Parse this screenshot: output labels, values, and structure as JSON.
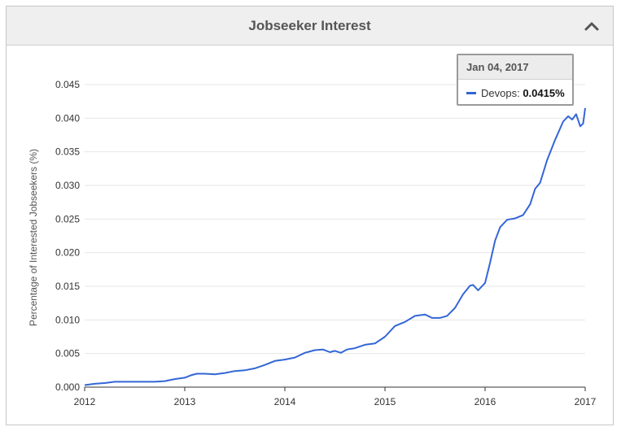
{
  "header": {
    "title": "Jobseeker Interest"
  },
  "colors": {
    "series": "#3366d6",
    "grid": "#e6e6e6",
    "axis": "#333333"
  },
  "tooltip": {
    "date": "Jan 04, 2017",
    "series_name": "Devops",
    "separator": ":",
    "value": "0.0415%"
  },
  "chart_data": {
    "type": "line",
    "title": "",
    "xlabel": "",
    "ylabel": "Percentage of Interested Jobseekers (%)",
    "xlim": [
      2012,
      2017
    ],
    "ylim": [
      0,
      0.045
    ],
    "grid": true,
    "x_ticks": [
      "2012",
      "2013",
      "2014",
      "2015",
      "2016",
      "2017"
    ],
    "y_ticks": [
      "0.000",
      "0.005",
      "0.010",
      "0.015",
      "0.020",
      "0.025",
      "0.030",
      "0.035",
      "0.040",
      "0.045"
    ],
    "series": [
      {
        "name": "Devops",
        "points": [
          [
            2012.0,
            0.0003
          ],
          [
            2012.1,
            0.0005
          ],
          [
            2012.2,
            0.0006
          ],
          [
            2012.3,
            0.0008
          ],
          [
            2012.4,
            0.0008
          ],
          [
            2012.5,
            0.0008
          ],
          [
            2012.6,
            0.0008
          ],
          [
            2012.7,
            0.0008
          ],
          [
            2012.8,
            0.0009
          ],
          [
            2012.9,
            0.0012
          ],
          [
            2013.0,
            0.0014
          ],
          [
            2013.07,
            0.0018
          ],
          [
            2013.12,
            0.002
          ],
          [
            2013.2,
            0.002
          ],
          [
            2013.3,
            0.0019
          ],
          [
            2013.4,
            0.0021
          ],
          [
            2013.5,
            0.0024
          ],
          [
            2013.6,
            0.0025
          ],
          [
            2013.7,
            0.0028
          ],
          [
            2013.8,
            0.0033
          ],
          [
            2013.9,
            0.0039
          ],
          [
            2014.0,
            0.0041
          ],
          [
            2014.1,
            0.0044
          ],
          [
            2014.2,
            0.0051
          ],
          [
            2014.3,
            0.0055
          ],
          [
            2014.38,
            0.0056
          ],
          [
            2014.45,
            0.0052
          ],
          [
            2014.5,
            0.0054
          ],
          [
            2014.56,
            0.0051
          ],
          [
            2014.62,
            0.0056
          ],
          [
            2014.7,
            0.0058
          ],
          [
            2014.8,
            0.0063
          ],
          [
            2014.9,
            0.0065
          ],
          [
            2015.0,
            0.0075
          ],
          [
            2015.1,
            0.0091
          ],
          [
            2015.2,
            0.0097
          ],
          [
            2015.3,
            0.0106
          ],
          [
            2015.4,
            0.0108
          ],
          [
            2015.47,
            0.0103
          ],
          [
            2015.55,
            0.0103
          ],
          [
            2015.62,
            0.0106
          ],
          [
            2015.7,
            0.0118
          ],
          [
            2015.78,
            0.0138
          ],
          [
            2015.85,
            0.0151
          ],
          [
            2015.88,
            0.0152
          ],
          [
            2015.93,
            0.0144
          ],
          [
            2016.0,
            0.0155
          ],
          [
            2016.05,
            0.0185
          ],
          [
            2016.1,
            0.0218
          ],
          [
            2016.15,
            0.0238
          ],
          [
            2016.22,
            0.0249
          ],
          [
            2016.3,
            0.0251
          ],
          [
            2016.38,
            0.0256
          ],
          [
            2016.45,
            0.0272
          ],
          [
            2016.5,
            0.0295
          ],
          [
            2016.55,
            0.0304
          ],
          [
            2016.62,
            0.0338
          ],
          [
            2016.7,
            0.0368
          ],
          [
            2016.78,
            0.0395
          ],
          [
            2016.83,
            0.0403
          ],
          [
            2016.87,
            0.0398
          ],
          [
            2016.91,
            0.0406
          ],
          [
            2016.95,
            0.0388
          ],
          [
            2016.98,
            0.0392
          ],
          [
            2017.0,
            0.0415
          ]
        ]
      }
    ]
  }
}
